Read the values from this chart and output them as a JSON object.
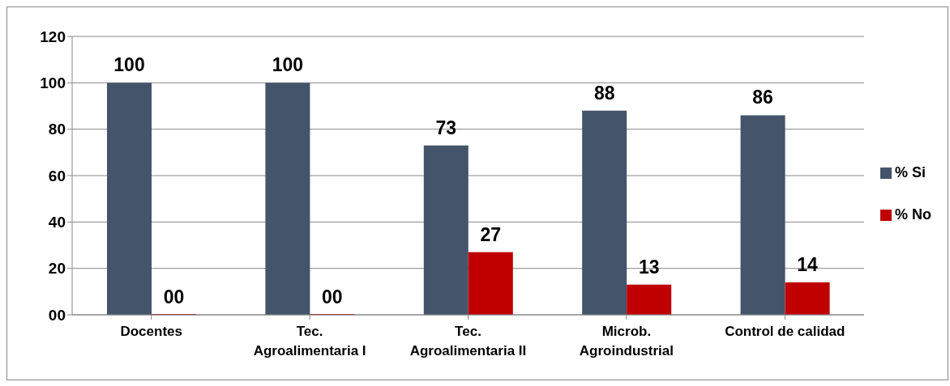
{
  "chart_data": {
    "type": "bar",
    "categories": [
      "Docentes",
      "Tec. Agroalimentaria I",
      "Tec. Agroalimentaria II",
      "Microb. Agroindustrial",
      "Control de calidad"
    ],
    "series": [
      {
        "name": "% Si",
        "color": "#44546a",
        "values": [
          100,
          100,
          73,
          88,
          86
        ],
        "value_labels": [
          "100",
          "100",
          "73",
          "88",
          "86"
        ]
      },
      {
        "name": "% No",
        "color": "#c00000",
        "values": [
          0,
          0,
          27,
          13,
          14
        ],
        "value_labels": [
          "00",
          "00",
          "27",
          "13",
          "14"
        ]
      }
    ],
    "ylim": [
      0,
      120
    ],
    "yticks": [
      {
        "value": 0,
        "label": "00"
      },
      20,
      40,
      60,
      80,
      100,
      120
    ],
    "grid": "y",
    "legend": "right",
    "data_labels": true
  }
}
